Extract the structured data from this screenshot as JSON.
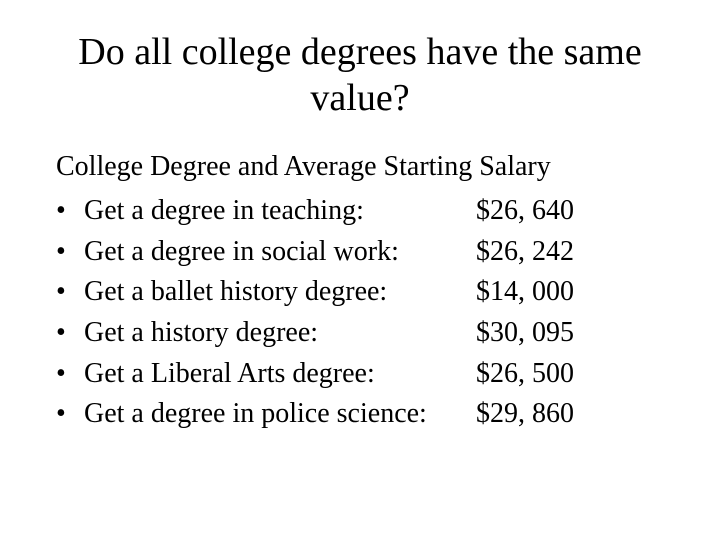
{
  "title": "Do all college degrees have the same value?",
  "subtitle": "College Degree and Average Starting Salary",
  "items": [
    {
      "bullet": "•",
      "label": "Get a degree in teaching:",
      "salary": "$26, 640"
    },
    {
      "bullet": "•",
      "label": "Get a degree in social work:",
      "salary": "$26, 242"
    },
    {
      "bullet": "•",
      "label": "Get a ballet history degree:",
      "salary": "$14, 000"
    },
    {
      "bullet": "•",
      "label": "Get a history degree:",
      "salary": "$30, 095"
    },
    {
      "bullet": "•",
      "label": "Get a Liberal Arts degree:",
      "salary": "$26, 500"
    },
    {
      "bullet": "•",
      "label": "Get a degree in police science:",
      "salary": "$29, 860"
    }
  ]
}
